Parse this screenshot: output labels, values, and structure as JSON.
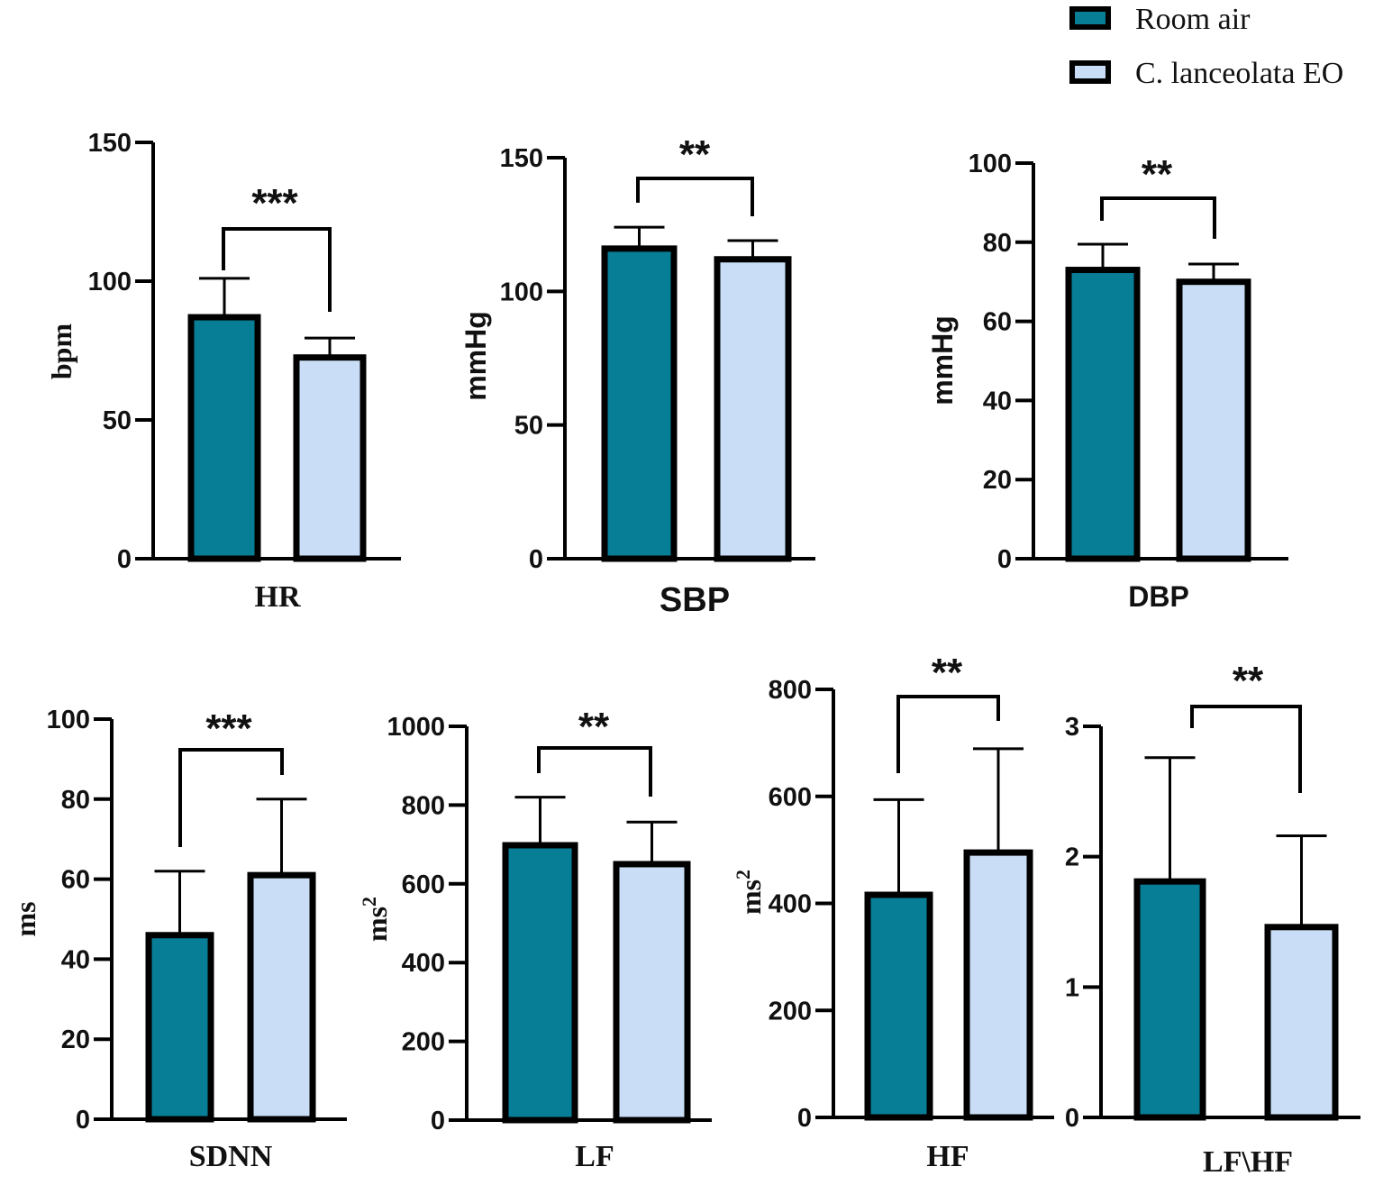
{
  "legend": [
    {
      "label": "Room air",
      "color": "#077e96"
    },
    {
      "label": "C. lanceolata EO",
      "color": "#c9def6"
    }
  ],
  "chart_data": [
    {
      "type": "bar",
      "title": "",
      "xlabel": "HR",
      "ylabel": "bpm",
      "ylim": [
        0,
        150
      ],
      "yticks": [
        "0",
        "50",
        "100",
        "150"
      ],
      "categories": [
        "Room air",
        "C. lanceolata EO"
      ],
      "values": [
        87,
        72.5
      ],
      "errors": [
        14,
        7
      ],
      "significance": "***"
    },
    {
      "type": "bar",
      "title": "",
      "xlabel": "SBP",
      "ylabel": "mmHg",
      "ylim": [
        0,
        150
      ],
      "yticks": [
        "0",
        "50",
        "100",
        "150"
      ],
      "categories": [
        "Room air",
        "C. lanceolata EO"
      ],
      "values": [
        116,
        112
      ],
      "errors": [
        8,
        7
      ],
      "significance": "**"
    },
    {
      "type": "bar",
      "title": "",
      "xlabel": "DBP",
      "ylabel": "mmHg",
      "ylim": [
        0,
        100
      ],
      "yticks": [
        "0",
        "20",
        "40",
        "60",
        "80",
        "100"
      ],
      "categories": [
        "Room air",
        "C. lanceolata EO"
      ],
      "values": [
        73,
        70
      ],
      "errors": [
        6.5,
        4.5
      ],
      "significance": "**"
    },
    {
      "type": "bar",
      "title": "",
      "xlabel": "SDNN",
      "ylabel": "ms",
      "ylim": [
        0,
        100
      ],
      "yticks": [
        "0",
        "20",
        "40",
        "60",
        "80",
        "100"
      ],
      "categories": [
        "Room air",
        "C. lanceolata EO"
      ],
      "values": [
        46,
        61
      ],
      "errors": [
        16,
        19
      ],
      "significance": "***"
    },
    {
      "type": "bar",
      "title": "",
      "xlabel": "LF",
      "ylabel": "ms2",
      "ylim": [
        0,
        1000
      ],
      "yticks": [
        "0",
        "200",
        "400",
        "600",
        "800",
        "1000"
      ],
      "categories": [
        "Room air",
        "C. lanceolata EO"
      ],
      "values": [
        698,
        650
      ],
      "errors": [
        122,
        107
      ],
      "significance": "**"
    },
    {
      "type": "bar",
      "title": "",
      "xlabel": "HF",
      "ylabel": "ms2",
      "ylim": [
        0,
        800
      ],
      "yticks": [
        "0",
        "200",
        "400",
        "600",
        "800"
      ],
      "categories": [
        "Room air",
        "C. lanceolata EO"
      ],
      "values": [
        416,
        495
      ],
      "errors": [
        178,
        194
      ],
      "significance": "**"
    },
    {
      "type": "bar",
      "title": "",
      "xlabel": "LF\\HF",
      "ylabel": "",
      "ylim": [
        0,
        3
      ],
      "yticks": [
        "0",
        "1",
        "2",
        "3"
      ],
      "categories": [
        "Room air",
        "C. lanceolata EO"
      ],
      "values": [
        1.81,
        1.46
      ],
      "errors": [
        0.95,
        0.7
      ],
      "significance": "**"
    }
  ]
}
